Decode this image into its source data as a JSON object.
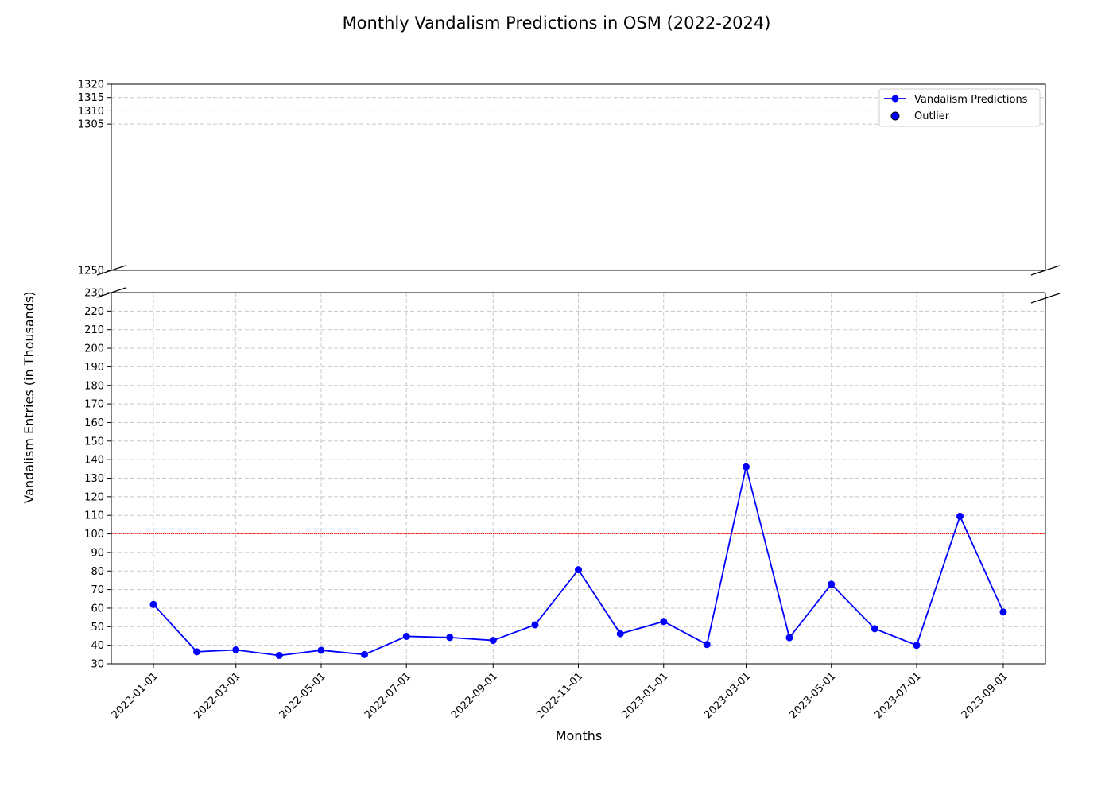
{
  "chart_data": {
    "type": "line",
    "title": "Monthly Vandalism Predictions in OSM (2022-2024)",
    "xlabel": "Months",
    "ylabel": "Vandalism Entries (in Thousands)",
    "x": [
      "2022-01-01",
      "2022-02-01",
      "2022-03-01",
      "2022-04-01",
      "2022-05-01",
      "2022-06-01",
      "2022-07-01",
      "2022-08-01",
      "2022-09-01",
      "2022-10-01",
      "2022-11-01",
      "2022-12-01",
      "2023-01-01",
      "2023-02-01",
      "2023-03-01",
      "2023-04-01",
      "2023-05-01",
      "2023-06-01",
      "2023-07-01",
      "2023-08-01",
      "2023-09-01"
    ],
    "x_ticks": [
      "2022-01-01",
      "2022-03-01",
      "2022-05-01",
      "2022-07-01",
      "2022-09-01",
      "2022-11-01",
      "2023-01-01",
      "2023-03-01",
      "2023-05-01",
      "2023-07-01",
      "2023-09-01"
    ],
    "series": [
      {
        "name": "Vandalism Predictions",
        "color": "#0000ff",
        "values": [
          62,
          36.5,
          37.5,
          34.5,
          37.3,
          35,
          44.8,
          44.2,
          42.6,
          51,
          80.7,
          46.2,
          52.8,
          40.4,
          136.1,
          44.1,
          72.9,
          48.9,
          40,
          109.5,
          57.9
        ]
      }
    ],
    "outliers": {
      "name": "Outlier",
      "color": "#0000ff",
      "points": []
    },
    "threshold": {
      "value": 100,
      "color": "#ff0000"
    },
    "upper_panel": {
      "ylim": [
        1250,
        1320
      ],
      "ticks": [
        1250,
        1305,
        1310,
        1315,
        1320
      ]
    },
    "lower_panel": {
      "ylim": [
        30,
        230
      ],
      "ticks": [
        30,
        40,
        50,
        60,
        70,
        80,
        90,
        100,
        110,
        120,
        130,
        140,
        150,
        160,
        170,
        180,
        190,
        200,
        210,
        220,
        230
      ]
    },
    "grid": true,
    "legend_position": "top-right"
  }
}
